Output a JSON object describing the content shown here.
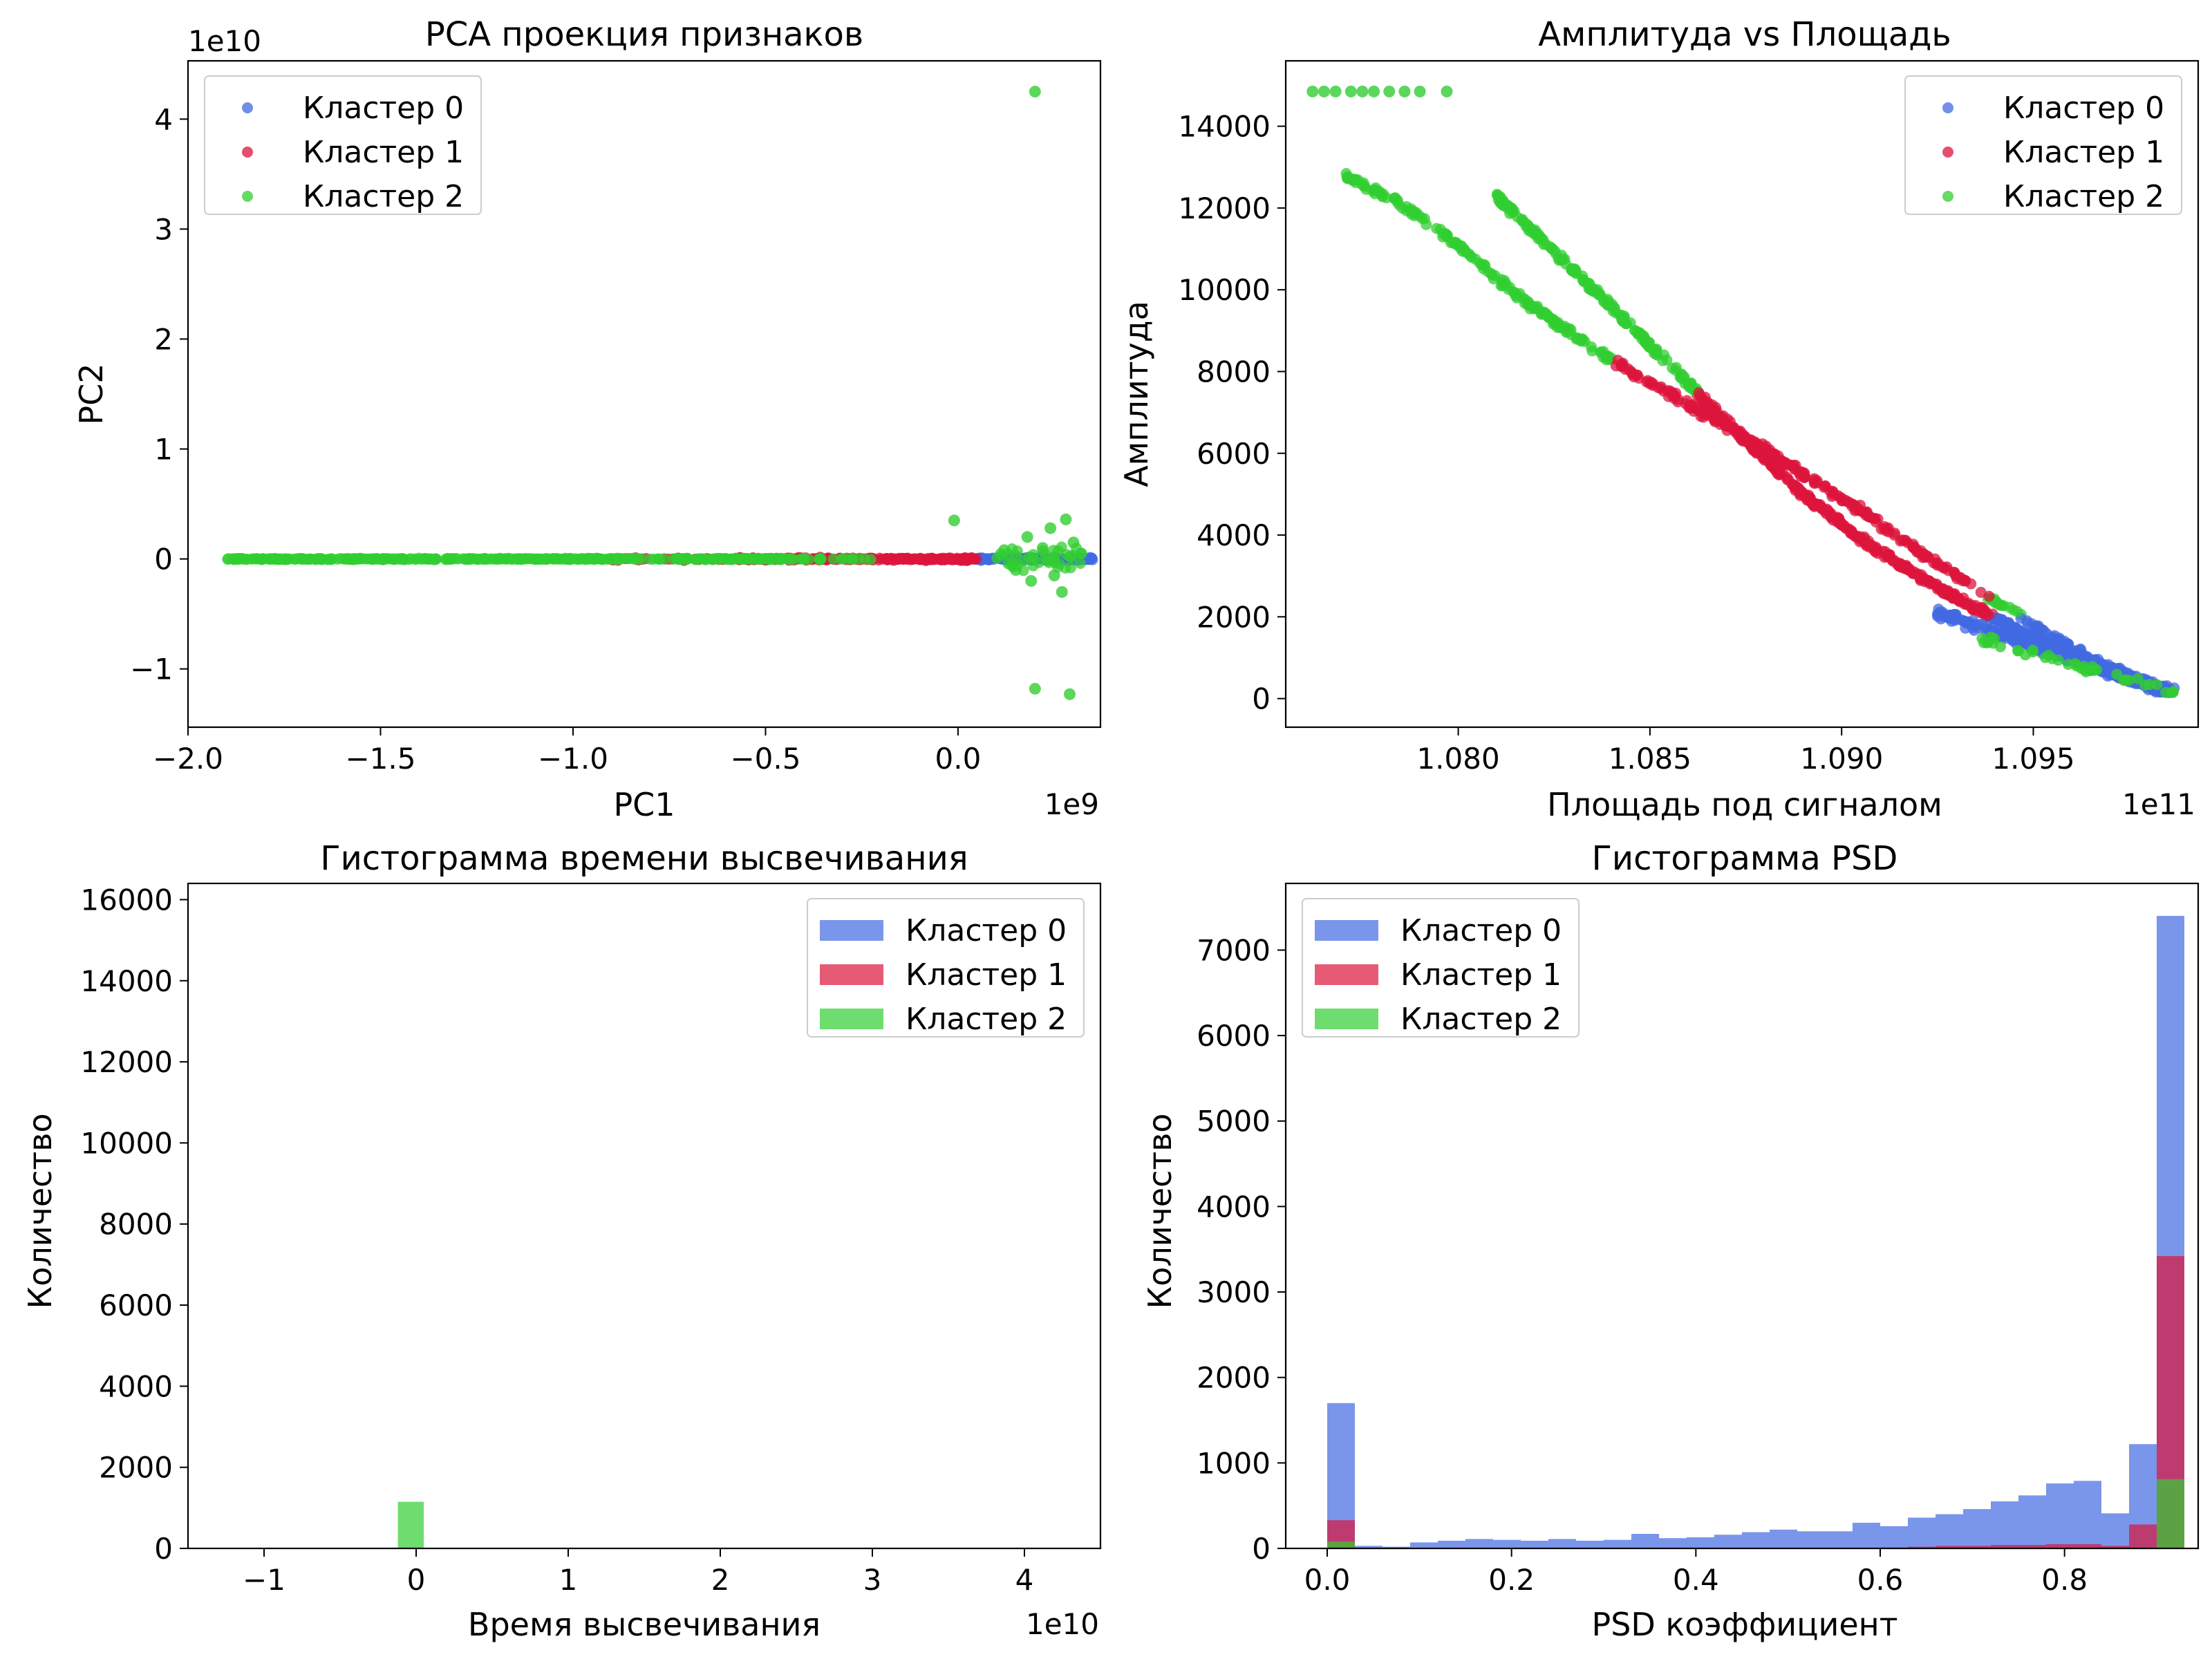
{
  "colors": {
    "cluster0": "#4169e1",
    "cluster1": "#dc143c",
    "cluster2": "#32cd32"
  },
  "legend_labels": [
    "Кластер 0",
    "Кластер 1",
    "Кластер 2"
  ],
  "chart_data": [
    {
      "id": "pca",
      "type": "scatter",
      "title": "PCA проекция признаков",
      "xlabel": "PC1",
      "ylabel": "PC2",
      "x_offset_text": "1e9",
      "y_offset_text": "1e10",
      "xlim": [
        -2.0,
        0.37
      ],
      "ylim": [
        -1.53,
        4.53
      ],
      "xticks": [
        -2.0,
        -1.5,
        -1.0,
        -0.5,
        0.0
      ],
      "xtick_labels": [
        "−2.0",
        "−1.5",
        "−1.0",
        "−0.5",
        "0.0"
      ],
      "yticks": [
        -1,
        0,
        1,
        2,
        3,
        4
      ],
      "ytick_labels": [
        "−1",
        "0",
        "1",
        "2",
        "3",
        "4"
      ],
      "legend_position": "upper left",
      "series": [
        {
          "name": "Кластер 0",
          "x_range": [
            0.05,
            0.35
          ],
          "y_center": 0.0,
          "description_points": []
        },
        {
          "name": "Кластер 1",
          "x_range": [
            -0.95,
            0.05
          ],
          "y_center": 0.0
        },
        {
          "name": "Кластер 2",
          "x_range": [
            -1.9,
            -0.2
          ],
          "y_center": 0.0,
          "outliers": [
            [
              0.2,
              4.25
            ],
            [
              0.2,
              -1.18
            ],
            [
              0.29,
              -1.23
            ],
            [
              -0.01,
              0.35
            ],
            [
              0.28,
              0.36
            ],
            [
              0.18,
              0.2
            ],
            [
              0.25,
              -0.15
            ],
            [
              0.22,
              0.1
            ],
            [
              0.3,
              0.15
            ],
            [
              0.15,
              -0.1
            ],
            [
              0.27,
              -0.3
            ],
            [
              0.24,
              0.28
            ],
            [
              0.19,
              -0.2
            ],
            [
              0.32,
              0.05
            ],
            [
              0.12,
              0.08
            ]
          ]
        }
      ]
    },
    {
      "id": "amp_area",
      "type": "scatter",
      "title": "Амплитуда vs Площадь",
      "xlabel": "Площадь под сигналом",
      "ylabel": "Амплитуда",
      "x_offset_text": "1e11",
      "xlim": [
        1.0755,
        1.0993
      ],
      "ylim": [
        -700,
        15600
      ],
      "xticks": [
        1.08,
        1.085,
        1.09,
        1.095
      ],
      "xtick_labels": [
        "1.080",
        "1.085",
        "1.090",
        "1.095"
      ],
      "yticks": [
        0,
        2000,
        4000,
        6000,
        8000,
        10000,
        12000,
        14000
      ],
      "ytick_labels": [
        "0",
        "2000",
        "4000",
        "6000",
        "8000",
        "10000",
        "12000",
        "14000"
      ],
      "legend_position": "upper right",
      "bands": [
        {
          "x": [
            1.077,
            1.0785,
            1.08,
            1.0815,
            1.083,
            1.0845,
            1.086,
            1.0875,
            1.089,
            1.0905,
            1.092,
            1.0935,
            1.095,
            1.0965,
            1.098,
            1.0985
          ],
          "y": [
            12850,
            12100,
            11100,
            9900,
            8900,
            8000,
            7200,
            6400,
            5500,
            4600,
            3600,
            2700,
            1800,
            1000,
            300,
            150
          ]
        },
        {
          "x": [
            1.081,
            1.082,
            1.083,
            1.0845,
            1.086,
            1.0875,
            1.089,
            1.0905,
            1.092,
            1.0935,
            1.095,
            1.0965,
            1.098,
            1.0985
          ],
          "y": [
            12300,
            11400,
            10500,
            9100,
            7700,
            6300,
            5000,
            3900,
            3000,
            2200,
            1500,
            800,
            300,
            150
          ]
        }
      ],
      "series": [
        {
          "name": "Кластер 0",
          "x_range": [
            1.092,
            1.0987
          ],
          "y_range": [
            150,
            2100
          ]
        },
        {
          "name": "Кластер 1",
          "x_range": [
            1.0845,
            1.0935
          ],
          "y_range": [
            1500,
            7400
          ]
        },
        {
          "name": "Кластер 2",
          "x_range": [
            1.0762,
            1.0987
          ],
          "y_range": [
            150,
            14850
          ]
        }
      ]
    },
    {
      "id": "hist_time",
      "type": "bar",
      "title": "Гистограмма времени высвечивания",
      "xlabel": "Время высвечивания",
      "ylabel": "Количество",
      "x_offset_text": "1e10",
      "xlim": [
        -1.5,
        4.5
      ],
      "ylim": [
        0,
        16400
      ],
      "xticks": [
        -1,
        0,
        1,
        2,
        3,
        4
      ],
      "xtick_labels": [
        "−1",
        "0",
        "1",
        "2",
        "3",
        "4"
      ],
      "yticks": [
        0,
        2000,
        4000,
        6000,
        8000,
        10000,
        12000,
        14000,
        16000
      ],
      "ytick_labels": [
        "0",
        "2000",
        "4000",
        "6000",
        "8000",
        "10000",
        "12000",
        "14000",
        "16000"
      ],
      "legend_position": "upper right",
      "series": [
        {
          "name": "Кластер 0",
          "bins": [],
          "values": []
        },
        {
          "name": "Кластер 1",
          "bins": [],
          "values": []
        },
        {
          "name": "Кластер 2",
          "bins": [
            [
              -0.12,
              0.05
            ]
          ],
          "values": [
            1150
          ]
        }
      ]
    },
    {
      "id": "hist_psd",
      "type": "bar",
      "title": "Гистограмма PSD",
      "xlabel": "PSD коэффициент",
      "ylabel": "Количество",
      "xlim": [
        -0.045,
        0.945
      ],
      "ylim": [
        0,
        7780
      ],
      "xticks": [
        0.0,
        0.2,
        0.4,
        0.6,
        0.8
      ],
      "xtick_labels": [
        "0.0",
        "0.2",
        "0.4",
        "0.6",
        "0.8"
      ],
      "yticks": [
        0,
        1000,
        2000,
        3000,
        4000,
        5000,
        6000,
        7000
      ],
      "ytick_labels": [
        "0",
        "1000",
        "2000",
        "3000",
        "4000",
        "5000",
        "6000",
        "7000"
      ],
      "legend_position": "upper left",
      "bin_start": 0.0,
      "bin_width": 0.03,
      "series": [
        {
          "name": "Кластер 0",
          "values": [
            1700,
            30,
            20,
            70,
            90,
            110,
            100,
            90,
            110,
            90,
            100,
            170,
            120,
            130,
            160,
            190,
            220,
            200,
            200,
            300,
            260,
            360,
            400,
            460,
            550,
            620,
            760,
            790,
            410,
            1220,
            7400
          ]
        },
        {
          "name": "Кластер 1",
          "values": [
            330,
            0,
            0,
            0,
            0,
            0,
            0,
            0,
            0,
            0,
            0,
            0,
            0,
            0,
            0,
            0,
            0,
            0,
            0,
            0,
            10,
            20,
            30,
            30,
            40,
            40,
            50,
            50,
            30,
            280,
            3420
          ]
        },
        {
          "name": "Кластер 2",
          "values": [
            80,
            0,
            0,
            0,
            0,
            0,
            0,
            0,
            0,
            0,
            0,
            0,
            0,
            0,
            0,
            0,
            0,
            0,
            0,
            0,
            0,
            0,
            0,
            0,
            0,
            0,
            0,
            0,
            0,
            0,
            810
          ]
        }
      ]
    }
  ]
}
